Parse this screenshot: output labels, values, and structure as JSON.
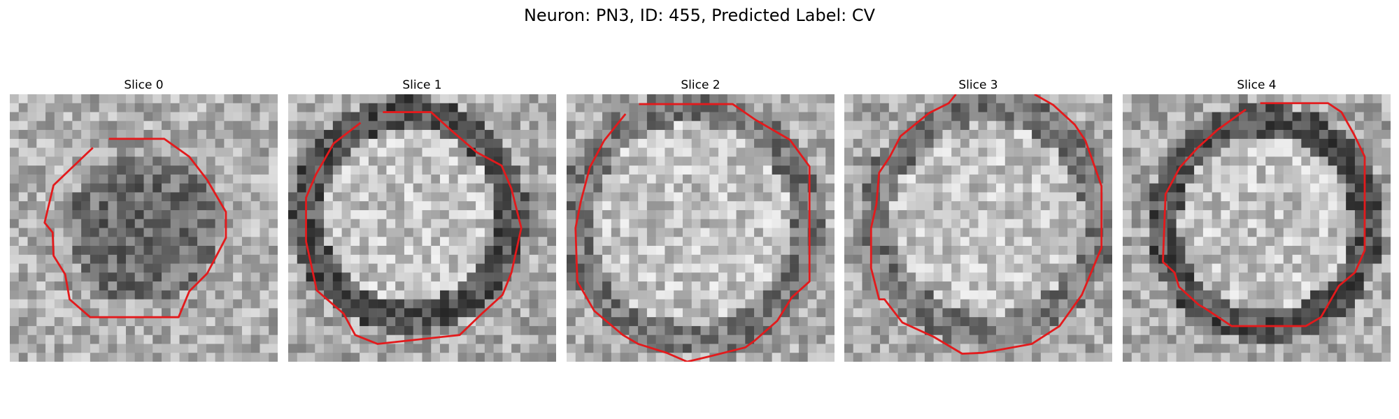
{
  "figure": {
    "title": "Neuron: PN3, ID: 455, Predicted Label: CV"
  },
  "panels": [
    {
      "title": "Slice 0"
    },
    {
      "title": "Slice 1"
    },
    {
      "title": "Slice 2"
    },
    {
      "title": "Slice 3"
    },
    {
      "title": "Slice 4"
    }
  ],
  "colors": {
    "contour": "#e31a1c",
    "background": "#ffffff"
  }
}
